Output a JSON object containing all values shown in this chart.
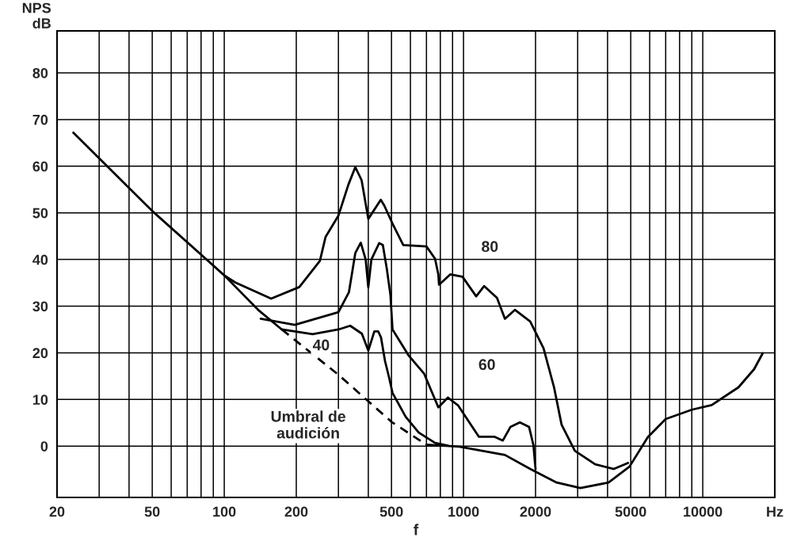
{
  "chart_data": {
    "type": "line",
    "xlabel": "f",
    "ylabel": "NPS\ndB",
    "log": "x",
    "grid": true,
    "xlim": [
      20,
      20000
    ],
    "ylim": [
      -11,
      89
    ],
    "xticks": [
      20,
      {
        "value": 30,
        "label": null
      },
      {
        "value": 40,
        "label": null
      },
      50,
      {
        "value": 60,
        "label": null
      },
      {
        "value": 70,
        "label": null
      },
      {
        "value": 80,
        "label": null
      },
      {
        "value": 90,
        "label": null
      },
      100,
      200,
      {
        "value": 300,
        "label": null
      },
      {
        "value": 400,
        "label": null
      },
      500,
      {
        "value": 600,
        "label": null
      },
      {
        "value": 700,
        "label": null
      },
      {
        "value": 800,
        "label": null
      },
      {
        "value": 900,
        "label": null
      },
      1000,
      2000,
      {
        "value": 3000,
        "label": null
      },
      {
        "value": 4000,
        "label": null
      },
      5000,
      {
        "value": 6000,
        "label": null
      },
      {
        "value": 7000,
        "label": null
      },
      {
        "value": 8000,
        "label": null
      },
      {
        "value": 9000,
        "label": null
      },
      10000,
      {
        "value": 20000,
        "label": "Hz"
      }
    ],
    "yticks": [
      0,
      10,
      20,
      30,
      40,
      50,
      60,
      70,
      80
    ],
    "series": [
      {
        "color": "#000000",
        "line_style": "solid",
        "x": [
          23.4,
          50,
          100,
          140,
          174
        ],
        "values": [
          67.2,
          50.4,
          36.6,
          29,
          25
        ]
      },
      {
        "color": "#000000",
        "line_style": "dashed",
        "x": [
          174,
          300,
          500,
          700
        ],
        "values": [
          25,
          15.3,
          5.2,
          0.3
        ]
      },
      {
        "color": "#000000",
        "line_style": "solid",
        "x": [
          700,
          960,
          1490,
          1900,
          2450,
          3080,
          4040,
          4940,
          5890,
          7000,
          9000,
          10900,
          14100,
          16400,
          17800
        ],
        "values": [
          0.3,
          -0.1,
          -1.9,
          -4.9,
          -7.8,
          -9.0,
          -7.8,
          -4.4,
          1.9,
          5.8,
          7.8,
          8.8,
          12.6,
          16.5,
          19.9
        ]
      },
      {
        "color": "#000000",
        "line_style": "solid",
        "x": [
          174,
          234,
          300,
          336,
          376,
          400,
          424,
          440,
          452,
          470,
          488,
          505,
          573,
          650,
          760,
          860
        ],
        "values": [
          25,
          24,
          25,
          25.8,
          24.1,
          20.5,
          24.6,
          24.6,
          23.3,
          18.2,
          14.8,
          11.4,
          6.3,
          2.9,
          0.7,
          0.1
        ]
      },
      {
        "color": "#000000",
        "line_style": "solid",
        "x": [
          142,
          197,
          300,
          332,
          353,
          372,
          390,
          400,
          412,
          444,
          460,
          478,
          495,
          505,
          590,
          685,
          785,
          860,
          950,
          1160,
          1350,
          1460,
          1570,
          1720,
          1880,
          1960,
          2000
        ],
        "values": [
          27.3,
          26,
          28.7,
          33,
          41.4,
          43.6,
          40,
          34,
          40,
          43.5,
          43.1,
          38,
          32.4,
          25,
          19.4,
          15.5,
          8.3,
          10.4,
          8.7,
          2,
          2,
          1.2,
          4.1,
          5.1,
          4.1,
          0.2,
          -4.9
        ]
      },
      {
        "color": "#000000",
        "line_style": "solid",
        "x": [
          100,
          111,
          157,
          206,
          251,
          265,
          300,
          330,
          353,
          375,
          400,
          451,
          466,
          505,
          560,
          700,
          760,
          785,
          790,
          880,
          990,
          1130,
          1220,
          1380,
          1490,
          1640,
          1900,
          2160,
          2390,
          2570,
          2920,
          3550,
          4250,
          4870
        ],
        "values": [
          36.6,
          35.1,
          31.6,
          34.1,
          39.7,
          44.8,
          49.4,
          56,
          59.8,
          57,
          48.7,
          52.8,
          51.6,
          47.7,
          43.1,
          42.8,
          40.2,
          36.8,
          34.6,
          36.8,
          36.3,
          32.1,
          34.3,
          31.8,
          27.3,
          29.2,
          26.7,
          21,
          12.6,
          4.6,
          -1.0,
          -3.9,
          -4.9,
          -3.6
        ]
      }
    ],
    "annotations": [
      "80",
      "60",
      "40",
      "Umbral de\naudición"
    ]
  }
}
